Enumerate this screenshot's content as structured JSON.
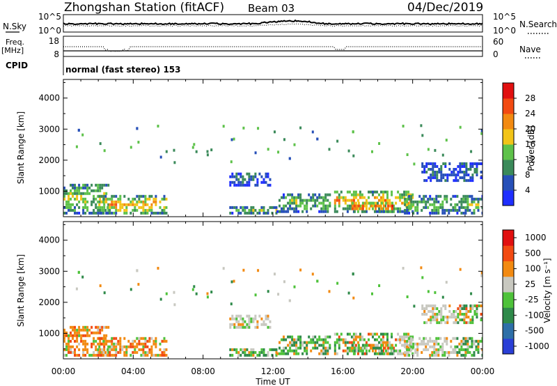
{
  "header": {
    "title": "Zhongshan Station (fitACF)",
    "beam": "Beam 03",
    "date": "04/Dec/2019"
  },
  "noise_panel": {
    "left_label": "N.Sky",
    "right_label": "N.Search",
    "left_ticks": [
      "10^5",
      "10^0"
    ],
    "right_ticks": [
      "10^5",
      "10^0"
    ]
  },
  "freq_panel": {
    "left_label_1": "Freq.",
    "left_label_2": "[MHz]",
    "left_ticks": [
      "18",
      "8"
    ],
    "right_label": "Nave",
    "right_ticks": [
      "60",
      "0"
    ]
  },
  "cpid": {
    "label": "CPID",
    "text": "normal (fast stereo) 153"
  },
  "chart_data": [
    {
      "type": "heatmap",
      "title": "",
      "quantity": "Power",
      "ylabel": "Slant Range [km]",
      "y_ticks": [
        "1000",
        "2000",
        "3000",
        "4000"
      ],
      "ylim": [
        180,
        4600
      ],
      "xlim_hours": [
        0,
        24
      ],
      "colorbar_label": "Power [dB]",
      "colorbar_ticks": [
        "4",
        "8",
        "12",
        "16",
        "20",
        "24",
        "28"
      ],
      "colorbar_range": [
        0,
        32
      ],
      "colorbar_colors": [
        "#1f2fff",
        "#2750b8",
        "#3b8a5a",
        "#5ec24a",
        "#f2c418",
        "#f28a12",
        "#f24a12",
        "#e11010"
      ],
      "echo_regions_hours_km": [
        {
          "t": [
            0.0,
            2.6
          ],
          "r": [
            250,
            1200
          ],
          "level": "medium-high"
        },
        {
          "t": [
            2.0,
            5.9
          ],
          "r": [
            250,
            800
          ],
          "level": "high"
        },
        {
          "t": [
            9.5,
            11.8
          ],
          "r": [
            1150,
            1550
          ],
          "level": "low"
        },
        {
          "t": [
            9.5,
            12.2
          ],
          "r": [
            250,
            450
          ],
          "level": "medium"
        },
        {
          "t": [
            12.2,
            15.2
          ],
          "r": [
            300,
            900
          ],
          "level": "medium"
        },
        {
          "t": [
            15.5,
            20.0
          ],
          "r": [
            300,
            1000
          ],
          "level": "high"
        },
        {
          "t": [
            16.5,
            18.8
          ],
          "r": [
            300,
            600
          ],
          "level": "very-high"
        },
        {
          "t": [
            19.5,
            24.0
          ],
          "r": [
            250,
            800
          ],
          "level": "medium"
        },
        {
          "t": [
            20.5,
            24.0
          ],
          "r": [
            1300,
            1900
          ],
          "level": "low"
        }
      ]
    },
    {
      "type": "heatmap",
      "title": "",
      "quantity": "Velocity",
      "ylabel": "Slant Range [km]",
      "xlabel": "Time UT",
      "x_ticks": [
        "00:00",
        "04:00",
        "08:00",
        "12:00",
        "16:00",
        "20:00",
        "00:00"
      ],
      "y_ticks": [
        "1000",
        "2000",
        "3000",
        "4000"
      ],
      "ylim": [
        180,
        4600
      ],
      "xlim_hours": [
        0,
        24
      ],
      "colorbar_label": "Velocity [m s⁻¹]",
      "colorbar_ticks": [
        "1000",
        "500",
        "100",
        "25",
        "-25",
        "-100",
        "-500",
        "-1000"
      ],
      "colorbar_colors": [
        "#2a3fd6",
        "#2e6fa8",
        "#2f8a4a",
        "#4ec23a",
        "#c8c8c0",
        "#f28a12",
        "#f24a12",
        "#e11010"
      ],
      "echo_regions_hours_km": [
        {
          "t": [
            0.0,
            5.9
          ],
          "r": [
            250,
            1200
          ],
          "sign": "negative"
        },
        {
          "t": [
            9.5,
            11.8
          ],
          "r": [
            1150,
            1550
          ],
          "sign": "near-zero"
        },
        {
          "t": [
            9.5,
            15.2
          ],
          "r": [
            250,
            900
          ],
          "sign": "positive"
        },
        {
          "t": [
            15.5,
            19.0
          ],
          "r": [
            300,
            1000
          ],
          "sign": "mixed"
        },
        {
          "t": [
            19.0,
            22.5
          ],
          "r": [
            250,
            1900
          ],
          "sign": "near-zero"
        },
        {
          "t": [
            22.5,
            24.0
          ],
          "r": [
            250,
            800
          ],
          "sign": "positive"
        }
      ]
    }
  ]
}
